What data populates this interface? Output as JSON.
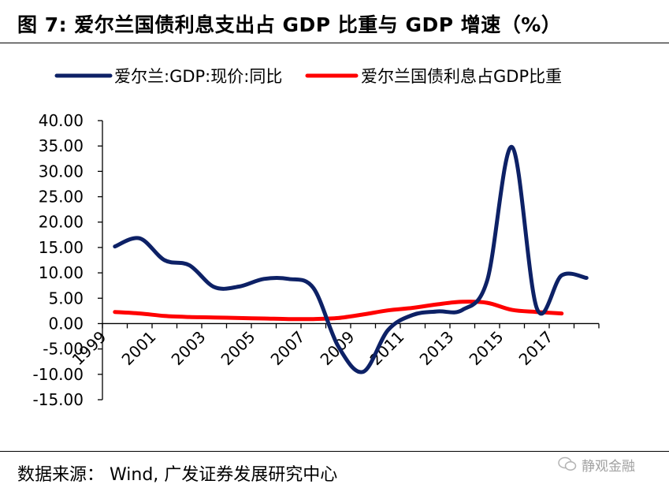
{
  "header": {
    "title": "图 7:  爱尔兰国债利息支出占 GDP 比重与 GDP 增速（%）"
  },
  "footer": {
    "source": "数据来源：  Wind,  广发证券发展研究中心",
    "watermark": "静观金融"
  },
  "colors": {
    "series1": "#0d2166",
    "series2": "#ff0000",
    "axis": "#000000"
  },
  "chart_data": {
    "type": "line",
    "title": "",
    "xlabel": "",
    "ylabel": "",
    "ylim": [
      -15,
      40
    ],
    "yticks": [
      40,
      35,
      30,
      25,
      20,
      15,
      10,
      5,
      0,
      -5,
      -10,
      -15
    ],
    "ytick_labels": [
      "40.00",
      "35.00",
      "30.00",
      "25.00",
      "20.00",
      "15.00",
      "10.00",
      "5.00",
      "0.00",
      "-5.00",
      "-10.00",
      "-15.00"
    ],
    "x_categories": [
      "1999",
      "2000",
      "2001",
      "2002",
      "2003",
      "2004",
      "2005",
      "2006",
      "2007",
      "2008",
      "2009",
      "2010",
      "2011",
      "2012",
      "2013",
      "2014",
      "2015",
      "2016",
      "2017",
      "2018"
    ],
    "x_tick_labels": [
      "1999",
      "2001",
      "2003",
      "2005",
      "2007",
      "2009",
      "2011",
      "2013",
      "2015",
      "2017"
    ],
    "legend_position": "top",
    "series": [
      {
        "name": "爱尔兰:GDP:现价:同比",
        "values": [
          15.2,
          16.8,
          12.5,
          11.5,
          7.2,
          7.3,
          8.8,
          8.8,
          7.0,
          -4.5,
          -9.5,
          -1.3,
          1.7,
          2.4,
          2.7,
          8.5,
          34.8,
          3.0,
          9.5,
          9.0
        ]
      },
      {
        "name": "爱尔兰国债利息占GDP比重",
        "values": [
          2.3,
          2.0,
          1.5,
          1.3,
          1.2,
          1.1,
          1.0,
          0.9,
          0.9,
          1.1,
          1.8,
          2.6,
          3.1,
          3.8,
          4.3,
          4.1,
          2.7,
          2.3,
          2.0,
          null
        ]
      }
    ]
  }
}
